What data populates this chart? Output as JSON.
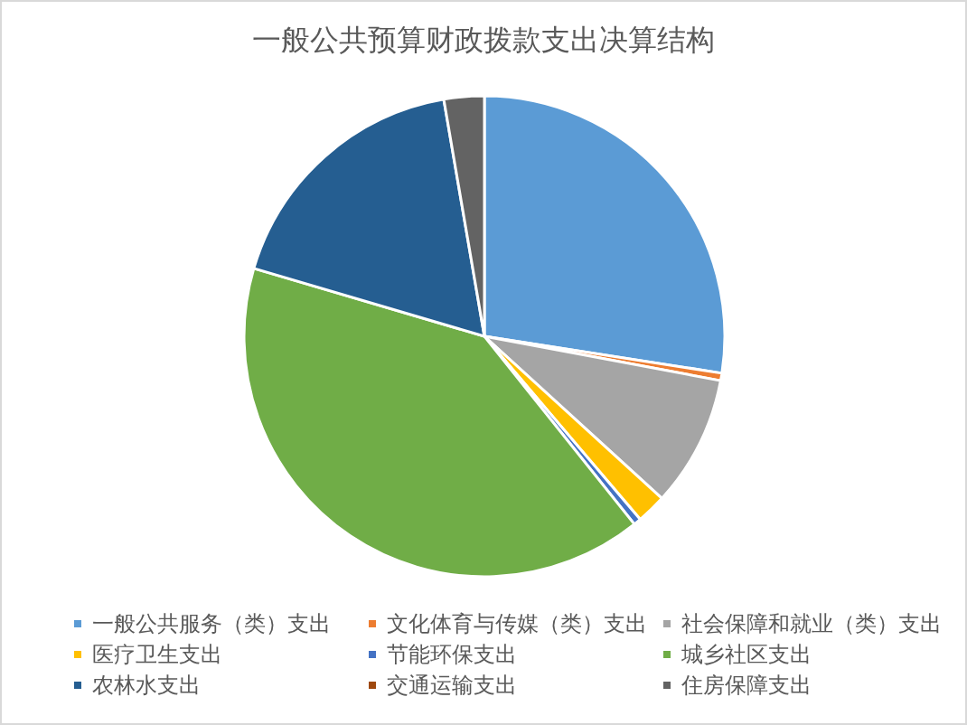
{
  "chart_data": {
    "type": "pie",
    "title": "一般公共预算财政拨款支出决算结构",
    "categories": [
      "一般公共服务（类）支出",
      "文化体育与传媒（类）支出",
      "社会保障和就业（类）支出",
      "医疗卫生支出",
      "节能环保支出",
      "城乡社区支出",
      "农林水支出",
      "交通运输支出",
      "住房保障支出"
    ],
    "values": [
      27.4,
      0.5,
      8.8,
      2.0,
      0.5,
      40.2,
      17.7,
      null,
      2.7
    ],
    "colors": [
      "#5b9bd5",
      "#ed7d31",
      "#a5a5a5",
      "#ffc000",
      "#4472c4",
      "#70ad47",
      "#255e91",
      "#9e480e",
      "#636363"
    ],
    "legend": "bottom"
  }
}
